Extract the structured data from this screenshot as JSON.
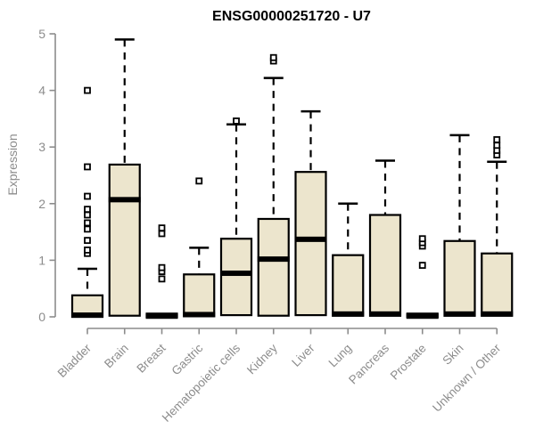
{
  "chart_data": {
    "type": "boxplot",
    "title": "ENSG00000251720 - U7",
    "ylabel": "Expression",
    "xlabel": "",
    "ylim": [
      0,
      5
    ],
    "yticks": [
      0,
      1,
      2,
      3,
      4,
      5
    ],
    "grid": false,
    "legend": "none",
    "categories": [
      "Bladder",
      "Brain",
      "Breast",
      "Gastric",
      "Hematopoietic cells",
      "Kidney",
      "Liver",
      "Lung",
      "Pancreas",
      "Prostate",
      "Skin",
      "Unknown / Other"
    ],
    "series": [
      {
        "name": "Bladder",
        "q1": 0.0,
        "median": 0.03,
        "q3": 0.38,
        "whisker_low": 0,
        "whisker_high": 0.85,
        "outliers": [
          1.12,
          1.18,
          1.35,
          1.55,
          1.66,
          1.8,
          1.9,
          2.13,
          2.65,
          4.0
        ]
      },
      {
        "name": "Brain",
        "q1": 0.02,
        "median": 2.07,
        "q3": 2.69,
        "whisker_low": 0,
        "whisker_high": 4.9,
        "outliers": []
      },
      {
        "name": "Breast",
        "q1": 0.0,
        "median": 0.02,
        "q3": 0.05,
        "whisker_low": 0,
        "whisker_high": 0.05,
        "outliers": [
          0.67,
          0.8,
          0.87,
          1.47,
          1.57
        ]
      },
      {
        "name": "Gastric",
        "q1": 0.01,
        "median": 0.04,
        "q3": 0.75,
        "whisker_low": 0,
        "whisker_high": 1.22,
        "outliers": [
          2.4
        ]
      },
      {
        "name": "Hematopoietic cells",
        "q1": 0.03,
        "median": 0.77,
        "q3": 1.38,
        "whisker_low": 0,
        "whisker_high": 3.4,
        "outliers": [
          3.46
        ]
      },
      {
        "name": "Kidney",
        "q1": 0.02,
        "median": 1.02,
        "q3": 1.73,
        "whisker_low": 0,
        "whisker_high": 4.22,
        "outliers": [
          4.52,
          4.58
        ]
      },
      {
        "name": "Liver",
        "q1": 0.03,
        "median": 1.37,
        "q3": 2.56,
        "whisker_low": 0,
        "whisker_high": 3.63,
        "outliers": []
      },
      {
        "name": "Lung",
        "q1": 0.02,
        "median": 0.05,
        "q3": 1.09,
        "whisker_low": 0,
        "whisker_high": 2.0,
        "outliers": []
      },
      {
        "name": "Pancreas",
        "q1": 0.02,
        "median": 0.05,
        "q3": 1.8,
        "whisker_low": 0,
        "whisker_high": 2.76,
        "outliers": []
      },
      {
        "name": "Prostate",
        "q1": 0.0,
        "median": 0.02,
        "q3": 0.05,
        "whisker_low": 0,
        "whisker_high": 0.05,
        "outliers": [
          0.91,
          1.25,
          1.31,
          1.38
        ]
      },
      {
        "name": "Skin",
        "q1": 0.02,
        "median": 0.05,
        "q3": 1.34,
        "whisker_low": 0,
        "whisker_high": 3.21,
        "outliers": []
      },
      {
        "name": "Unknown / Other",
        "q1": 0.02,
        "median": 0.05,
        "q3": 1.12,
        "whisker_low": 0,
        "whisker_high": 2.74,
        "outliers": [
          2.86,
          2.94,
          3.03,
          3.13
        ]
      }
    ],
    "colors": {
      "box_fill": "#ECE5CD",
      "box_stroke": "#000000",
      "median": "#000000",
      "whisker": "#000000",
      "outlier_stroke": "#000000",
      "axis": "#8C8C8C",
      "tick_label": "#8C8C8C",
      "title": "#000000"
    }
  }
}
